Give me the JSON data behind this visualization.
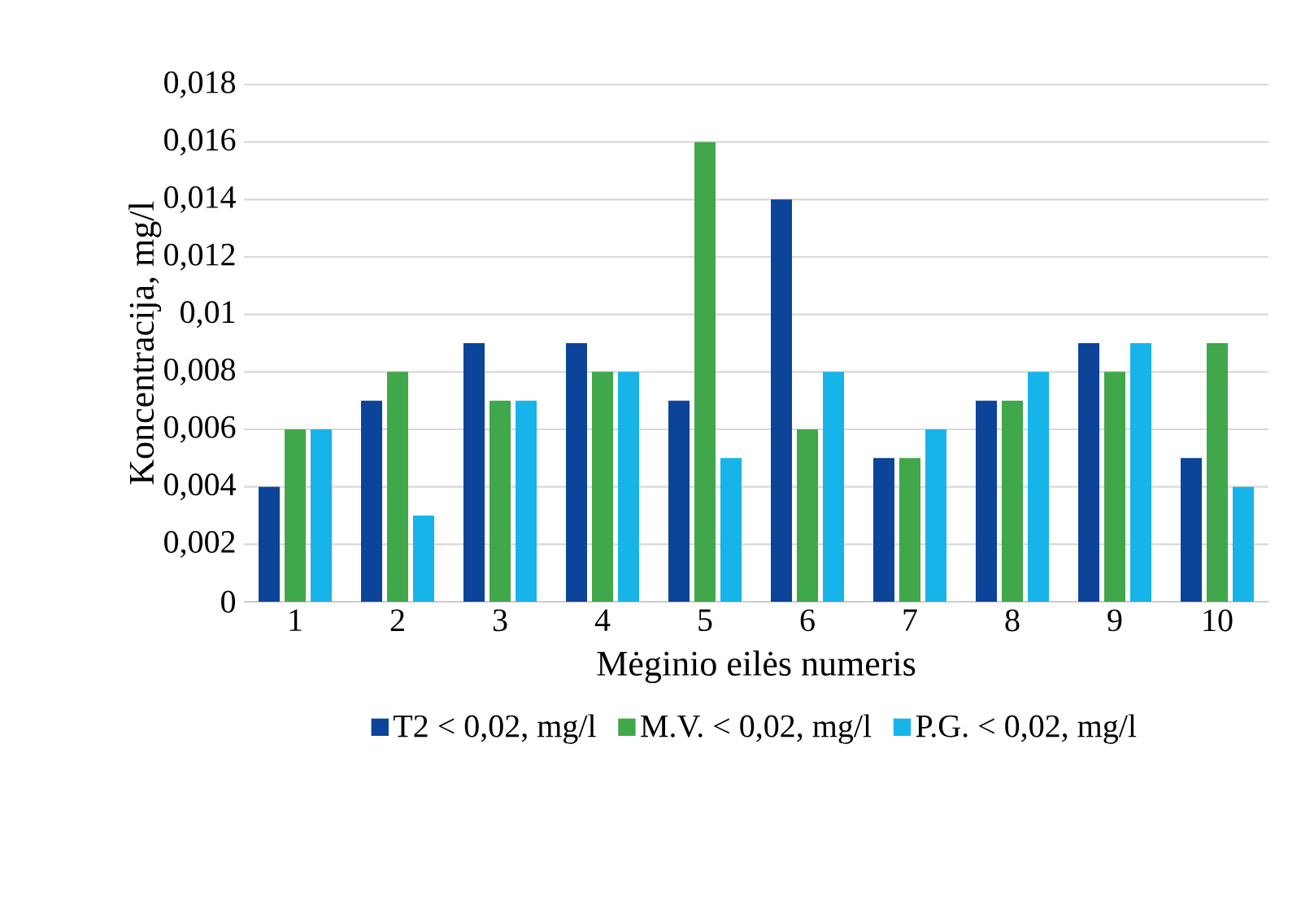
{
  "chart_data": {
    "type": "bar",
    "xlabel": "Mėginio eilės numeris",
    "ylabel": "Koncentracija, mg/l",
    "categories": [
      "1",
      "2",
      "3",
      "4",
      "5",
      "6",
      "7",
      "8",
      "9",
      "10"
    ],
    "series": [
      {
        "name": "T2  < 0,02, mg/l",
        "color": "#0b4499",
        "values": [
          0.004,
          0.007,
          0.009,
          0.009,
          0.007,
          0.014,
          0.005,
          0.007,
          0.009,
          0.005
        ]
      },
      {
        "name": "M.V. < 0,02, mg/l",
        "color": "#40a74a",
        "values": [
          0.006,
          0.008,
          0.007,
          0.008,
          0.016,
          0.006,
          0.005,
          0.007,
          0.008,
          0.009
        ]
      },
      {
        "name": "P.G. < 0,02, mg/l",
        "color": "#17b4ea",
        "values": [
          0.006,
          0.003,
          0.007,
          0.008,
          0.005,
          0.008,
          0.006,
          0.008,
          0.009,
          0.004
        ]
      }
    ],
    "ylim": [
      0,
      0.018
    ],
    "yticks": [
      0,
      {
        "value": 0.002,
        "label": "0,002"
      },
      {
        "value": 0.004,
        "label": "0,004"
      },
      {
        "value": 0.006,
        "label": "0,006"
      },
      {
        "value": 0.008,
        "label": "0,008"
      },
      {
        "value": 0.01,
        "label": "0,01"
      },
      {
        "value": 0.012,
        "label": "0,012"
      },
      {
        "value": 0.014,
        "label": "0,014"
      },
      {
        "value": 0.016,
        "label": "0,016"
      },
      {
        "value": 0.018,
        "label": "0,018"
      }
    ],
    "grid": "y",
    "legend": "bottom"
  }
}
